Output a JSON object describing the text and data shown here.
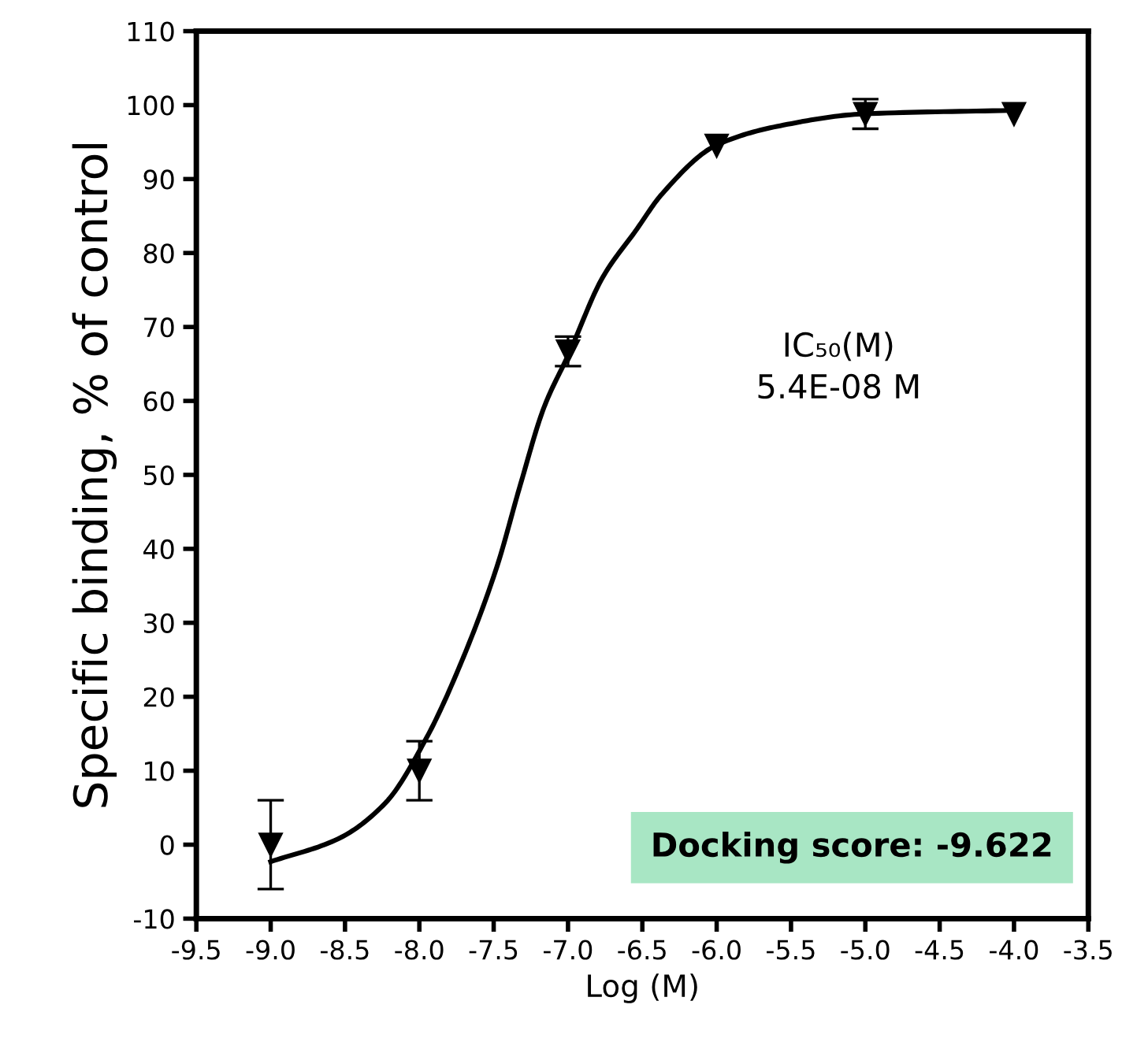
{
  "chart_data": {
    "type": "scatter",
    "xlabel": "Log (M)",
    "ylabel": "Specific binding, % of control",
    "xlim": [
      -9.5,
      -3.5
    ],
    "xticks": [
      -9.5,
      {
        "value": -9,
        "label": "-9.0"
      },
      -8.5,
      {
        "value": -8,
        "label": "-8.0"
      },
      -7.5,
      {
        "value": -7,
        "label": "-7.0"
      },
      -6.5,
      {
        "value": -6,
        "label": "-6.0"
      },
      -5.5,
      {
        "value": -5,
        "label": "-5.0"
      },
      -4.5,
      {
        "value": -4,
        "label": "-4.0"
      },
      -3.5
    ],
    "ylim": [
      -10,
      110
    ],
    "yticks": [
      -10,
      0,
      10,
      20,
      30,
      40,
      50,
      60,
      70,
      80,
      90,
      100,
      110
    ],
    "grid": false,
    "series": [
      {
        "color": "#000000",
        "marker": "triangle",
        "x": [
          -9,
          -8,
          -7,
          -6,
          -5,
          -4
        ],
        "values": [
          0,
          10,
          66.7,
          94.5,
          98.8,
          98.8
        ],
        "errors": [
          6,
          4,
          2,
          null,
          2,
          null
        ]
      },
      {
        "type": "line",
        "color": "#000000",
        "line_style": "solid",
        "marker": "none",
        "x": [
          -9,
          -8.545,
          -8.23,
          -7.953,
          -7.715,
          -7.478,
          -7.32,
          -7.162,
          -6.996,
          -6.767,
          -6.545,
          -6.367,
          -6.0,
          -5.55,
          -5.02,
          -3.98
        ],
        "values": [
          -2.3,
          0.8,
          5.6,
          14.4,
          24.8,
          37.6,
          48.7,
          59.1,
          66.3,
          76.7,
          83,
          88,
          94.6,
          97.3,
          98.8,
          99.3
        ]
      }
    ],
    "annotations": [
      "IC₅₀(M)\n5.4E-08 M",
      "Docking score: -9.622"
    ]
  }
}
